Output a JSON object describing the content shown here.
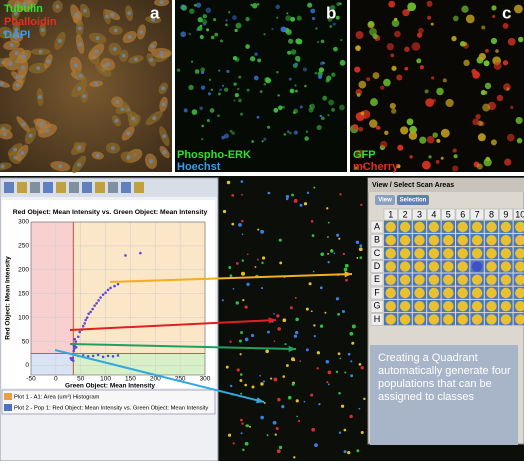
{
  "panels": [
    {
      "letter": "a",
      "labels": [
        "Tubulin",
        "Phalloidin",
        "DAPI"
      ]
    },
    {
      "letter": "b",
      "labels": [
        "Phospho-ERK",
        "Hoechst"
      ]
    },
    {
      "letter": "c",
      "labels": [
        "GFP",
        "mCherry"
      ]
    }
  ],
  "plot": {
    "title": "Red Object: Mean Intensity vs. Green Object: Mean Intensity",
    "x_label": "Green Object: Mean Intensity",
    "y_label": "Red Object: Mean Intensity",
    "xlim": [
      -50,
      300
    ],
    "ylim": [
      -20,
      300
    ],
    "xticks": [
      -50,
      0,
      50,
      100,
      150,
      200,
      250,
      300
    ],
    "yticks": [
      0,
      50,
      100,
      150,
      200,
      250,
      300
    ],
    "points": {
      "x": [
        45,
        48,
        52,
        55,
        58,
        60,
        63,
        66,
        70,
        74,
        78,
        82,
        86,
        90,
        95,
        100,
        105,
        110,
        118,
        125,
        140,
        170,
        36,
        37,
        38,
        39,
        40,
        41,
        38,
        36,
        45,
        55,
        65,
        75,
        85,
        95,
        105,
        115,
        125,
        30,
        32,
        34,
        35,
        33
      ],
      "y": [
        60,
        70,
        75,
        82,
        88,
        95,
        100,
        108,
        112,
        118,
        125,
        130,
        136,
        142,
        148,
        152,
        158,
        162,
        166,
        170,
        230,
        235,
        30,
        35,
        40,
        45,
        50,
        38,
        55,
        42,
        20,
        21,
        19,
        20,
        22,
        18,
        20,
        19,
        21,
        15,
        12,
        16,
        10,
        14
      ]
    },
    "legend": [
      "Plot 1 - A1: Area (um²) Histogram",
      "Plot 2 - Pop 1: Red Object: Mean Intensity vs. Green Object: Mean Intensity"
    ]
  },
  "plate": {
    "title": "View / Select Scan Areas",
    "tabs": [
      "View",
      "Selection"
    ],
    "columns": [
      "1",
      "2",
      "3",
      "4",
      "5",
      "6",
      "7",
      "8",
      "9",
      "10"
    ],
    "rows": [
      "A",
      "B",
      "C",
      "D",
      "E",
      "F",
      "G",
      "H"
    ]
  },
  "callout": "Creating a Quadrant automatically generate four populations that can be assigned to classes"
}
